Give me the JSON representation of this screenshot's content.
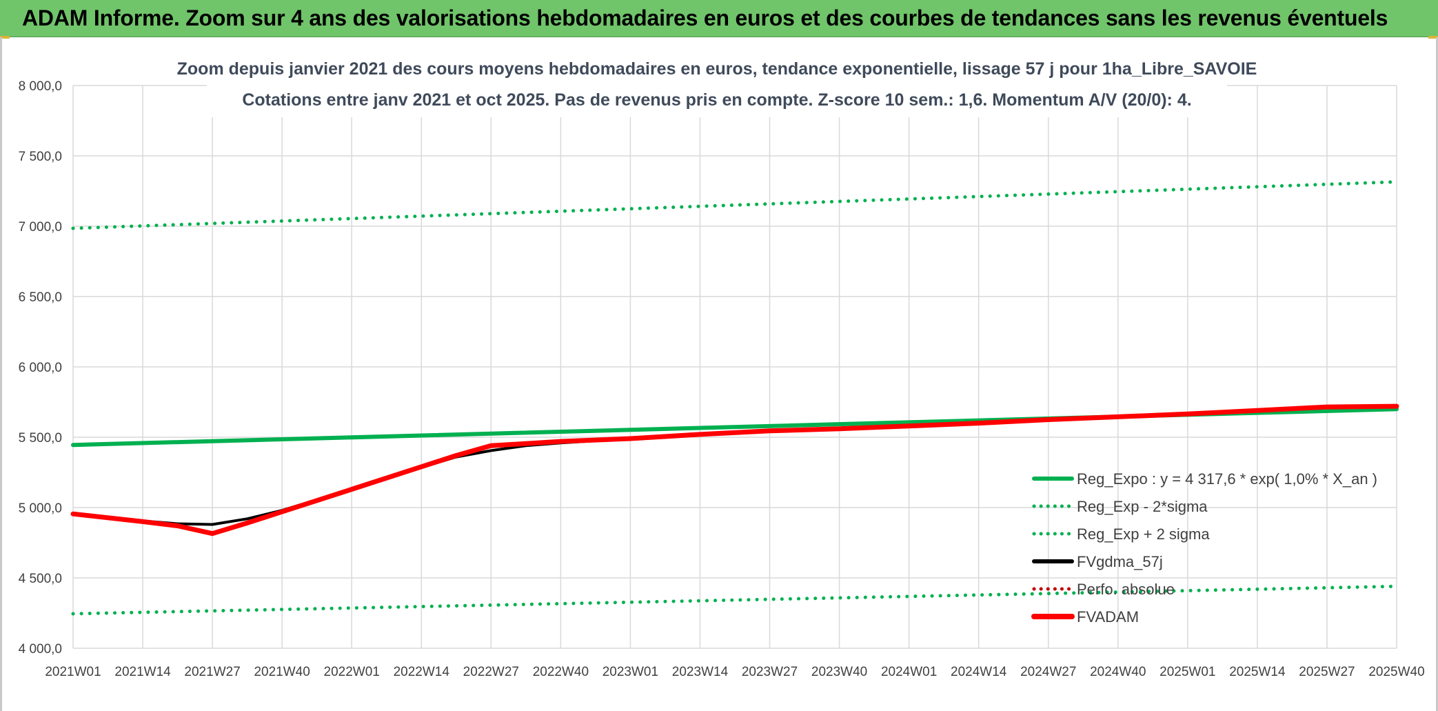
{
  "header": {
    "title": "ADAM Informe. Zoom sur 4 ans des valorisations hebdomadaires en euros et des courbes de tendances sans les revenus éventuels"
  },
  "colors": {
    "banner": "#70c46a",
    "reg_expo": "#00b050",
    "fvgdma": "#000000",
    "perfo": "#c00000",
    "fvadam": "#ff0000",
    "grid": "#d9d9d9"
  },
  "chart_data": {
    "type": "line",
    "title_line1": "Zoom depuis janvier 2021 des cours moyens hebdomadaires en euros, tendance exponentielle, lissage 57 j pour 1ha_Libre_SAVOIE",
    "title_line2": "Cotations entre janv 2021 et oct 2025. Pas de revenus pris en compte. Z-score 10 sem.: 1,6. Momentum A/V (20/0): 4.",
    "xlabel": "",
    "ylabel": "",
    "ylim": [
      4000,
      8000
    ],
    "y_ticks": [
      4000,
      4500,
      5000,
      5500,
      6000,
      6500,
      7000,
      7500,
      8000
    ],
    "y_tick_labels": [
      "4 000,0",
      "4 500,0",
      "5 000,0",
      "5 500,0",
      "6 000,0",
      "6 500,0",
      "7 000,0",
      "7 500,0",
      "8 000,0"
    ],
    "x_tick_labels": [
      "2021W01",
      "2021W14",
      "2021W27",
      "2021W40",
      "2022W01",
      "2022W14",
      "2022W27",
      "2022W40",
      "2023W01",
      "2023W14",
      "2023W27",
      "2023W40",
      "2024W01",
      "2024W14",
      "2024W27",
      "2024W40",
      "2025W01",
      "2025W14",
      "2025W27",
      "2025W40"
    ],
    "legend_position": "right",
    "series": [
      {
        "name": "Reg_Expo : y = 4 317,6 * exp( 1,0% *  X_an )",
        "style": "solid",
        "color": "#00b050",
        "points": [
          [
            0,
            5445
          ],
          [
            19,
            5700
          ]
        ]
      },
      {
        "name": "Reg_Exp - 2*sigma",
        "style": "dotted",
        "color": "#00b050",
        "points": [
          [
            0,
            4245
          ],
          [
            19,
            4440
          ]
        ]
      },
      {
        "name": "Reg_Exp + 2 sigma",
        "style": "dotted",
        "color": "#00b050",
        "points": [
          [
            0,
            6985
          ],
          [
            19,
            7315
          ]
        ]
      },
      {
        "name": "FVgdma_57j",
        "style": "solid",
        "color": "#000000",
        "points": [
          [
            0,
            4950
          ],
          [
            1,
            4905
          ],
          [
            1.5,
            4885
          ],
          [
            2,
            4880
          ],
          [
            2.5,
            4920
          ],
          [
            3,
            4980
          ],
          [
            4,
            5130
          ],
          [
            5,
            5285
          ],
          [
            5.5,
            5360
          ],
          [
            6,
            5405
          ],
          [
            6.5,
            5440
          ],
          [
            7,
            5460
          ],
          [
            8,
            5490
          ],
          [
            9,
            5520
          ],
          [
            10,
            5545
          ],
          [
            11,
            5560
          ],
          [
            12,
            5580
          ],
          [
            13,
            5600
          ],
          [
            14,
            5625
          ],
          [
            15,
            5645
          ],
          [
            16,
            5665
          ],
          [
            17,
            5685
          ],
          [
            18,
            5710
          ],
          [
            19,
            5720
          ]
        ]
      },
      {
        "name": "Perfo. absolue",
        "style": "dotted",
        "color": "#c00000",
        "points": []
      },
      {
        "name": "FVADAM",
        "style": "solid",
        "color": "#ff0000",
        "points": [
          [
            0,
            4955
          ],
          [
            1,
            4900
          ],
          [
            1.5,
            4870
          ],
          [
            2,
            4815
          ],
          [
            2.5,
            4890
          ],
          [
            3,
            4970
          ],
          [
            4,
            5130
          ],
          [
            5,
            5290
          ],
          [
            5.5,
            5370
          ],
          [
            6,
            5440
          ],
          [
            6.5,
            5455
          ],
          [
            7,
            5470
          ],
          [
            8,
            5490
          ],
          [
            9,
            5520
          ],
          [
            10,
            5545
          ],
          [
            11,
            5560
          ],
          [
            12,
            5580
          ],
          [
            13,
            5600
          ],
          [
            14,
            5625
          ],
          [
            15,
            5645
          ],
          [
            16,
            5665
          ],
          [
            17,
            5690
          ],
          [
            18,
            5715
          ],
          [
            19,
            5720
          ]
        ]
      }
    ]
  }
}
